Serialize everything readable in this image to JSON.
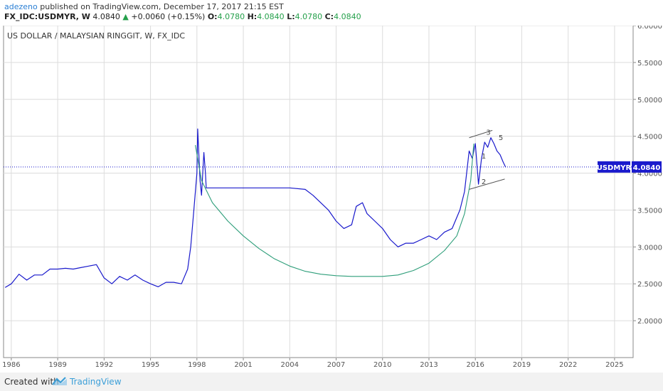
{
  "header": {
    "author": "adezeno",
    "published": "published on TradingView.com, December 17, 2017 21:15 EST",
    "symbol": "FX_IDC:USDMYR, W",
    "price": "4.0840",
    "change": "+0.0060 (+0.15%)",
    "o_label": "O:",
    "o_value": "4.0780",
    "h_label": "H:",
    "h_value": "4.0840",
    "l_label": "L:",
    "l_value": "4.0780",
    "c_label": "C:",
    "c_value": "4.0840"
  },
  "footer": {
    "created_with": "Created with",
    "brand": "TradingView"
  },
  "colors": {
    "series": "#1a1acc",
    "curve": "#2e9e7a",
    "grid": "#dcdcdc",
    "annotation": "#444444",
    "price_tag": "#1a1acc"
  },
  "chart_data": {
    "type": "line",
    "title": "US DOLLAR / MALAYSIAN RINGGIT, W, FX_IDC",
    "price_label": {
      "symbol": "USDMYR",
      "value": "4.0840",
      "y": 4.084
    },
    "ylim": [
      1.5,
      6.0
    ],
    "xlim": [
      1985.5,
      2026.2
    ],
    "yticks": [
      "2.0000",
      "2.5000",
      "3.0000",
      "3.5000",
      "4.0000",
      "4.5000",
      "5.0000",
      "5.5000",
      "6.0000"
    ],
    "xticks": [
      "1986",
      "1989",
      "1992",
      "1995",
      "1998",
      "2001",
      "2004",
      "2007",
      "2010",
      "2013",
      "2016",
      "2019",
      "2022",
      "2025"
    ],
    "series": [
      {
        "x": [
          1985.6,
          1986.0,
          1986.5,
          1987.0,
          1987.5,
          1988.0,
          1988.5,
          1989.0,
          1989.5,
          1990.0,
          1990.5,
          1991.0,
          1991.5,
          1992.0,
          1992.5,
          1993.0,
          1993.5,
          1994.0,
          1994.5,
          1995.0,
          1995.5,
          1996.0,
          1996.5,
          1997.0,
          1997.4,
          1997.6,
          1997.8,
          1998.0,
          1998.05,
          1998.2,
          1998.3,
          1998.45,
          1998.55,
          1998.6,
          1999.0,
          2000.0,
          2001.0,
          2002.0,
          2003.0,
          2004.0,
          2005.0,
          2005.5,
          2006.0,
          2006.5,
          2007.0,
          2007.5,
          2008.0,
          2008.3,
          2008.7,
          2009.0,
          2009.5,
          2010.0,
          2010.5,
          2011.0,
          2011.5,
          2012.0,
          2012.5,
          2013.0,
          2013.5,
          2014.0,
          2014.5,
          2015.0,
          2015.3,
          2015.6,
          2015.8,
          2016.0,
          2016.2,
          2016.4,
          2016.6,
          2016.8,
          2017.0,
          2017.2,
          2017.4,
          2017.6,
          2017.8,
          2017.96
        ],
        "values": [
          2.45,
          2.5,
          2.63,
          2.55,
          2.62,
          2.62,
          2.7,
          2.7,
          2.71,
          2.7,
          2.72,
          2.74,
          2.76,
          2.58,
          2.5,
          2.6,
          2.55,
          2.62,
          2.55,
          2.5,
          2.46,
          2.52,
          2.52,
          2.5,
          2.7,
          3.0,
          3.5,
          4.0,
          4.6,
          3.9,
          3.7,
          4.28,
          4.0,
          3.8,
          3.8,
          3.8,
          3.8,
          3.8,
          3.8,
          3.8,
          3.78,
          3.7,
          3.6,
          3.5,
          3.35,
          3.25,
          3.3,
          3.55,
          3.6,
          3.45,
          3.35,
          3.25,
          3.1,
          3.0,
          3.05,
          3.05,
          3.1,
          3.15,
          3.1,
          3.2,
          3.25,
          3.5,
          3.75,
          4.3,
          4.2,
          4.4,
          3.85,
          4.2,
          4.42,
          4.35,
          4.48,
          4.4,
          4.3,
          4.25,
          4.15,
          4.08
        ]
      },
      {
        "x": [
          1997.9,
          1998.3,
          1999.0,
          2000.0,
          2001.0,
          2002.0,
          2003.0,
          2004.0,
          2005.0,
          2006.0,
          2007.0,
          2008.0,
          2009.0,
          2010.0,
          2011.0,
          2012.0,
          2013.0,
          2014.0,
          2014.8,
          2015.3,
          2015.7,
          2015.9
        ],
        "values": [
          4.38,
          3.9,
          3.6,
          3.35,
          3.15,
          2.98,
          2.84,
          2.74,
          2.67,
          2.63,
          2.61,
          2.6,
          2.6,
          2.6,
          2.62,
          2.68,
          2.78,
          2.95,
          3.15,
          3.45,
          3.9,
          4.4
        ]
      }
    ],
    "annotations": [
      {
        "text": "1",
        "x": 2016.4,
        "y": 4.2
      },
      {
        "text": "2",
        "x": 2016.4,
        "y": 3.85
      },
      {
        "text": "3",
        "x": 2016.7,
        "y": 4.52
      },
      {
        "text": "5",
        "x": 2017.5,
        "y": 4.45
      }
    ],
    "channel_lines": [
      {
        "x": [
          2015.6,
          2017.1
        ],
        "y": [
          4.48,
          4.58
        ]
      },
      {
        "x": [
          2015.6,
          2017.9
        ],
        "y": [
          3.78,
          3.92
        ]
      }
    ]
  }
}
